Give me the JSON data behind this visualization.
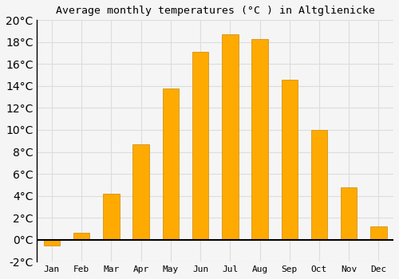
{
  "title": "Average monthly temperatures (°C ) in Altglienicke",
  "months": [
    "Jan",
    "Feb",
    "Mar",
    "Apr",
    "May",
    "Jun",
    "Jul",
    "Aug",
    "Sep",
    "Oct",
    "Nov",
    "Dec"
  ],
  "values": [
    -0.5,
    0.6,
    4.2,
    8.7,
    13.8,
    17.1,
    18.7,
    18.3,
    14.6,
    10.0,
    4.8,
    1.2
  ],
  "bar_color": "#FFAA00",
  "bar_edge_color": "#CC8800",
  "background_color": "#F5F5F5",
  "grid_color": "#DDDDDD",
  "ylim": [
    -2,
    20
  ],
  "yticks": [
    -2,
    0,
    2,
    4,
    6,
    8,
    10,
    12,
    14,
    16,
    18,
    20
  ],
  "title_fontsize": 9.5,
  "tick_fontsize": 8,
  "bar_width": 0.55
}
